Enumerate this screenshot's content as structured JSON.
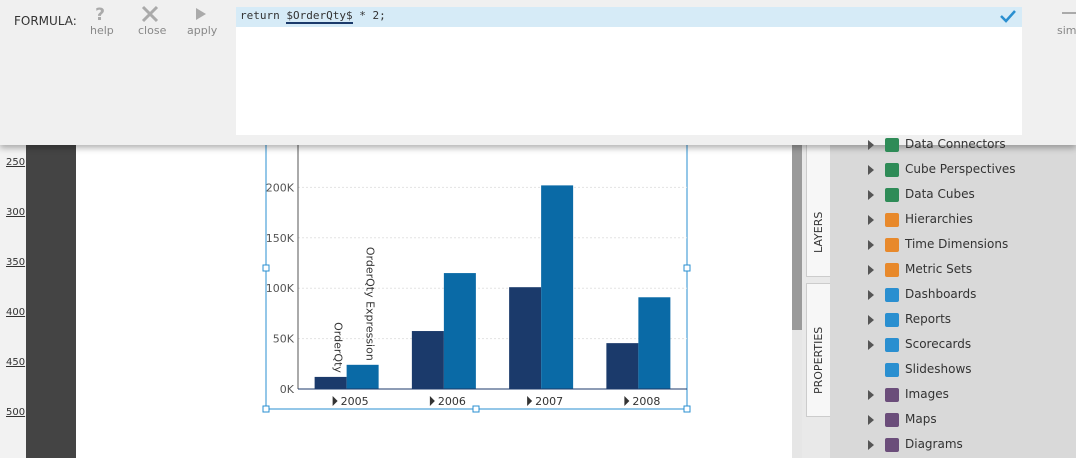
{
  "toolbar": {
    "label": "FORMULA:",
    "buttons": [
      "help",
      "close",
      "apply"
    ],
    "cut_button": "simp"
  },
  "editor": {
    "code_before": "return",
    "variable": "$OrderQty$",
    "code_after": "* 2;"
  },
  "ruler": {
    "labels": [
      "250",
      "300",
      "350",
      "400",
      "450",
      "500"
    ]
  },
  "tabs": [
    "LAYERS",
    "PROPERTIES"
  ],
  "panel": {
    "items": [
      {
        "label": "Data Connectors",
        "expandable": true,
        "icon_color": "#2e8b57"
      },
      {
        "label": "Cube Perspectives",
        "expandable": true,
        "icon_color": "#2e8b57"
      },
      {
        "label": "Data Cubes",
        "expandable": true,
        "icon_color": "#2e8b57"
      },
      {
        "label": "Hierarchies",
        "expandable": true,
        "icon_color": "#e8892b"
      },
      {
        "label": "Time Dimensions",
        "expandable": true,
        "icon_color": "#e8892b"
      },
      {
        "label": "Metric Sets",
        "expandable": true,
        "icon_color": "#e8892b"
      },
      {
        "label": "Dashboards",
        "expandable": true,
        "icon_color": "#2a8fd0"
      },
      {
        "label": "Reports",
        "expandable": true,
        "icon_color": "#2a8fd0"
      },
      {
        "label": "Scorecards",
        "expandable": true,
        "icon_color": "#2a8fd0"
      },
      {
        "label": "Slideshows",
        "expandable": false,
        "icon_color": "#2a8fd0"
      },
      {
        "label": "Images",
        "expandable": true,
        "icon_color": "#6b4d7a"
      },
      {
        "label": "Maps",
        "expandable": true,
        "icon_color": "#6b4d7a"
      },
      {
        "label": "Diagrams",
        "expandable": true,
        "icon_color": "#6b4d7a"
      }
    ]
  },
  "chart_data": {
    "type": "bar",
    "categories": [
      "2005",
      "2006",
      "2007",
      "2008"
    ],
    "series": [
      {
        "name": "OrderQty",
        "color": "#1b3a6b",
        "values": [
          12000,
          57500,
          101000,
          45500
        ]
      },
      {
        "name": "OrderQty Expression",
        "color": "#0a6aa6",
        "values": [
          24000,
          115000,
          202000,
          91000
        ]
      }
    ],
    "ylim": [
      0,
      250000
    ],
    "yticks": [
      {
        "value": 0,
        "label": "0K"
      },
      {
        "value": 50000,
        "label": "50K"
      },
      {
        "value": 100000,
        "label": "100K"
      },
      {
        "value": 150000,
        "label": "150K"
      },
      {
        "value": 200000,
        "label": "200K"
      }
    ],
    "grid": true
  }
}
